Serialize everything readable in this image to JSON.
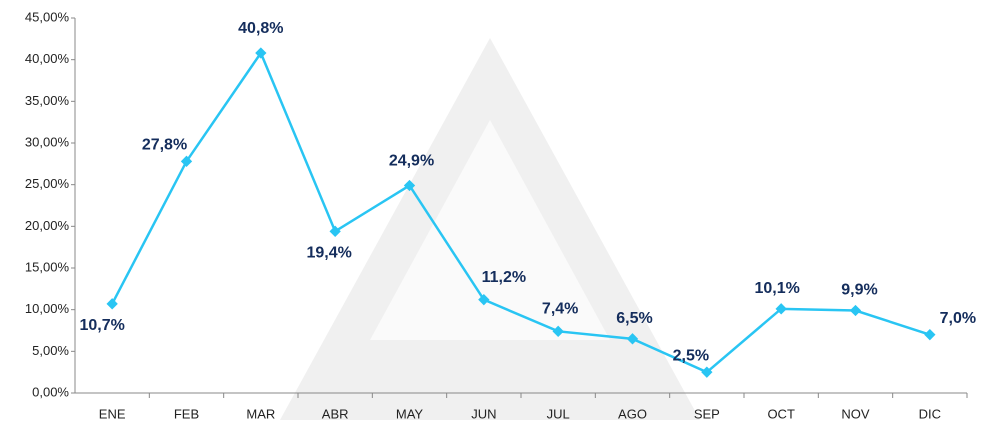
{
  "chart_data": {
    "type": "line",
    "categories": [
      "ENE",
      "FEB",
      "MAR",
      "ABR",
      "MAY",
      "JUN",
      "JUL",
      "AGO",
      "SEP",
      "OCT",
      "NOV",
      "DIC"
    ],
    "series": [
      {
        "name": "",
        "color": "#29c5f3",
        "values": [
          10.7,
          27.8,
          40.8,
          19.4,
          24.9,
          11.2,
          7.4,
          6.5,
          2.5,
          10.1,
          9.9,
          7.0
        ],
        "value_labels": [
          "10,7%",
          "27,8%",
          "40,8%",
          "19,4%",
          "24,9%",
          "11,2%",
          "7,4%",
          "6,5%",
          "2,5%",
          "10,1%",
          "9,9%",
          "7,0%"
        ]
      }
    ],
    "ylim": [
      0,
      45
    ],
    "yticks": [
      {
        "value": 0,
        "label": "0,00%"
      },
      {
        "value": 5,
        "label": "5,00%"
      },
      {
        "value": 10,
        "label": "10,00%"
      },
      {
        "value": 15,
        "label": "15,00%"
      },
      {
        "value": 20,
        "label": "20,00%"
      },
      {
        "value": 25,
        "label": "25,00%"
      },
      {
        "value": 30,
        "label": "30,00%"
      },
      {
        "value": 35,
        "label": "35,00%"
      },
      {
        "value": 40,
        "label": "40,00%"
      },
      {
        "value": 45,
        "label": "45,00%"
      }
    ],
    "grid": false
  }
}
